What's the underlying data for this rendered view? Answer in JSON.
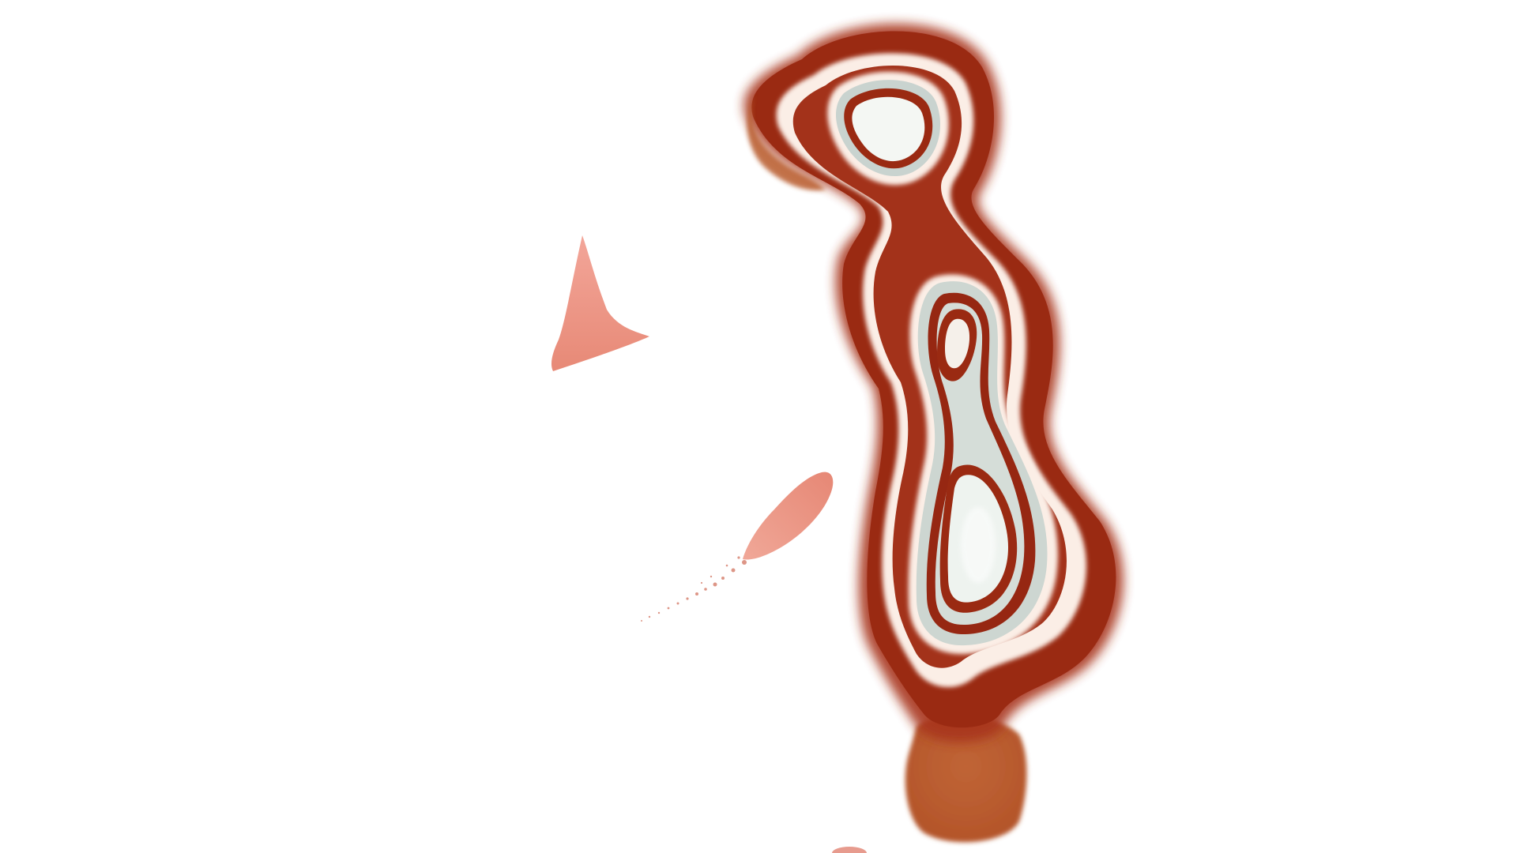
{
  "scene": {
    "subject": "abstract-stained-glass-figure",
    "background_color": "#ffffff",
    "colors": {
      "dark_red": "#9a2a12",
      "rust": "#b85a2c",
      "orange_drip": "#c8703c",
      "glass_silver": "#cfd6d2",
      "glass_highlight": "#f2f5f1",
      "pale_center": "#f7faf7",
      "coral": "#ec8e7e",
      "coral_light": "#f3a59a"
    }
  }
}
